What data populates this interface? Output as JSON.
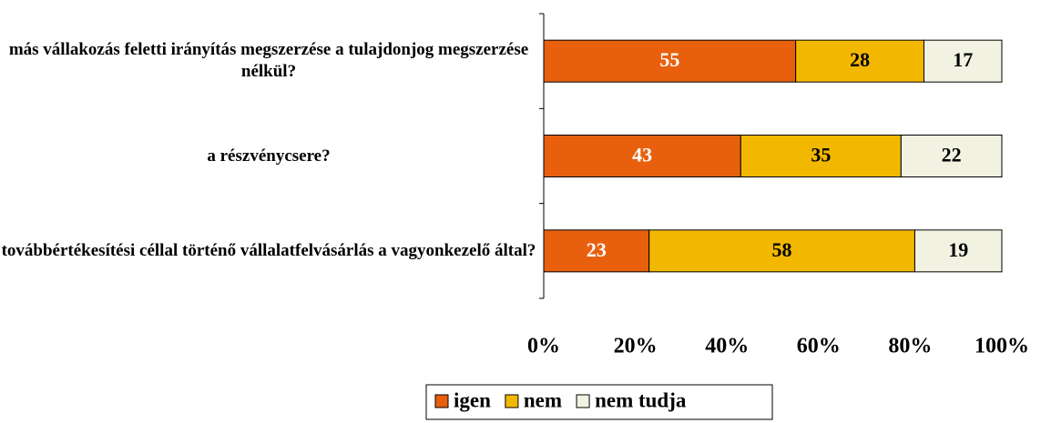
{
  "chart_data": {
    "type": "stacked-bar-horizontal",
    "categories": [
      "más vállakozás feletti irányítás megszerzése a tulajdonjog megszerzése nélkül?",
      "a részvénycsere?",
      "továbbértékesítési céllal történő vállalatfelvásárlás a vagyonkezelő által?"
    ],
    "series": [
      {
        "name": "igen",
        "color": "#e8600e",
        "label_color": "#ffffff",
        "values": [
          55,
          43,
          23
        ]
      },
      {
        "name": "nem",
        "color": "#f2b800",
        "label_color": "#000000",
        "values": [
          28,
          35,
          58
        ]
      },
      {
        "name": "nem tudja",
        "color": "#f2f2e2",
        "label_color": "#000000",
        "values": [
          17,
          22,
          19
        ]
      }
    ],
    "xlim": [
      0,
      100
    ],
    "xticks": [
      {
        "value": 0,
        "label": "0%"
      },
      {
        "value": 20,
        "label": "20%"
      },
      {
        "value": 40,
        "label": "40%"
      },
      {
        "value": 60,
        "label": "60%"
      },
      {
        "value": 80,
        "label": "80%"
      },
      {
        "value": 100,
        "label": "100%"
      }
    ],
    "legend": "bottom"
  }
}
